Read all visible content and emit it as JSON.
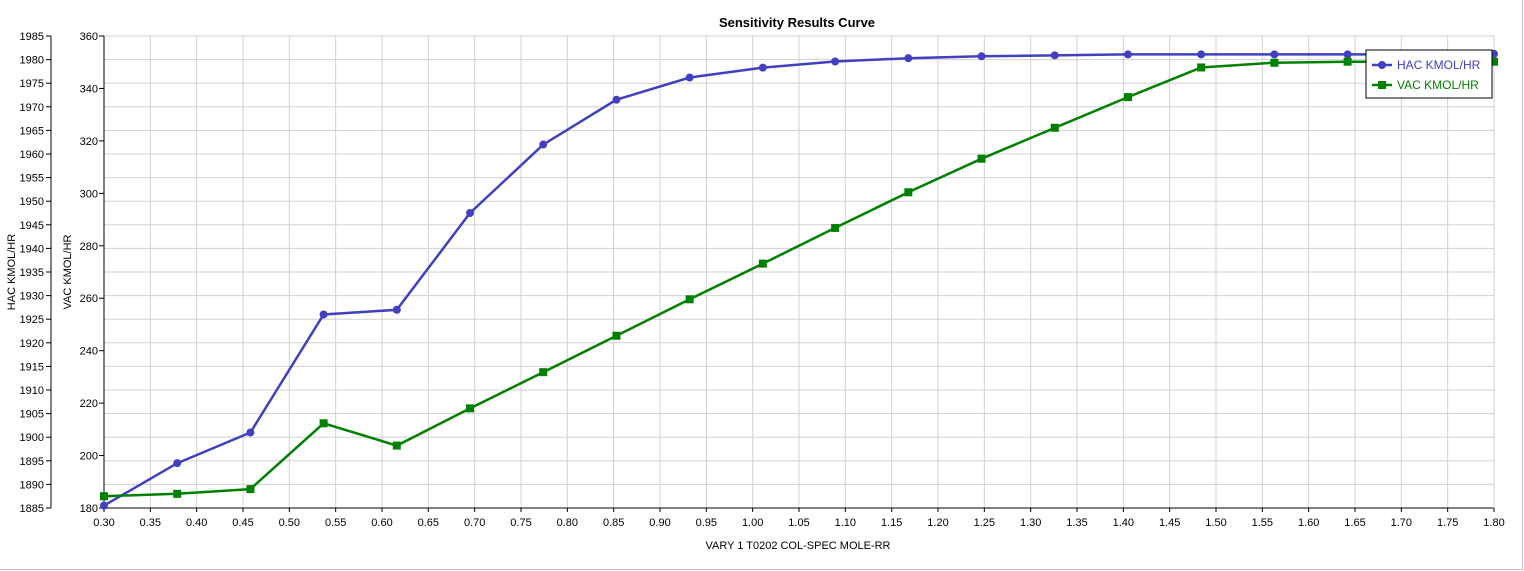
{
  "chart_data": {
    "type": "line",
    "title": "Sensitivity Results Curve",
    "xlabel": "VARY   1 T0202 COL-SPEC MOLE-RR",
    "ylabel_left": "HAC KMOL/HR",
    "ylabel_right": "VAC KMOL/HR",
    "xlim": [
      0.3,
      1.8
    ],
    "x_ticks": [
      "0.30",
      "0.35",
      "0.40",
      "0.45",
      "0.50",
      "0.55",
      "0.60",
      "0.65",
      "0.70",
      "0.75",
      "0.80",
      "0.85",
      "0.90",
      "0.95",
      "1.00",
      "1.05",
      "1.10",
      "1.15",
      "1.20",
      "1.25",
      "1.30",
      "1.35",
      "1.40",
      "1.45",
      "1.50",
      "1.55",
      "1.60",
      "1.65",
      "1.70",
      "1.75",
      "1.80"
    ],
    "y1lim": [
      1885,
      1985
    ],
    "y1_ticks": [
      "1985",
      "1980",
      "1975",
      "1970",
      "1965",
      "1960",
      "1955",
      "1950",
      "1945",
      "1940",
      "1935",
      "1930",
      "1925",
      "1920",
      "1915",
      "1910",
      "1905",
      "1900",
      "1895",
      "1890",
      "1885"
    ],
    "y2lim": [
      180,
      360
    ],
    "y2_ticks": [
      "360",
      "340",
      "320",
      "300",
      "280",
      "260",
      "240",
      "220",
      "200",
      "180"
    ],
    "grid": true,
    "legend_position": "top-right",
    "x": [
      0.3,
      0.379,
      0.458,
      0.537,
      0.616,
      0.695,
      0.774,
      0.853,
      0.932,
      1.011,
      1.089,
      1.168,
      1.247,
      1.326,
      1.405,
      1.484,
      1.563,
      1.642,
      1.721,
      1.8
    ],
    "series": [
      {
        "name": "HAC KMOL/HR",
        "axis": "left",
        "color": "#4040c0",
        "marker": "circle",
        "values": [
          1885.5,
          1894.5,
          1901.0,
          1926.0,
          1927.0,
          1947.5,
          1962.0,
          1971.5,
          1976.2,
          1978.3,
          1979.6,
          1980.3,
          1980.7,
          1980.9,
          1981.1,
          1981.1,
          1981.1,
          1981.1,
          1981.1,
          1981.2
        ]
      },
      {
        "name": "VAC KMOL/HR",
        "axis": "right",
        "color": "#008000",
        "marker": "square",
        "values": [
          184.5,
          185.4,
          187.2,
          212.3,
          203.8,
          218.0,
          231.8,
          245.7,
          259.6,
          273.2,
          286.8,
          300.4,
          313.2,
          325.0,
          336.7,
          348.0,
          349.8,
          350.2,
          350.2,
          350.2
        ]
      }
    ]
  }
}
